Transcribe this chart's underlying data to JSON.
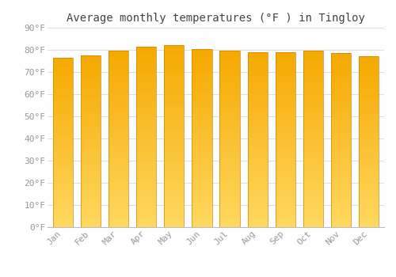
{
  "title": "Average monthly temperatures (°F ) in Tingloy",
  "months": [
    "Jan",
    "Feb",
    "Mar",
    "Apr",
    "May",
    "Jun",
    "Jul",
    "Aug",
    "Sep",
    "Oct",
    "Nov",
    "Dec"
  ],
  "values": [
    76.5,
    77.5,
    79.5,
    81.5,
    82.0,
    80.5,
    79.5,
    79.0,
    79.0,
    79.5,
    78.5,
    77.0
  ],
  "ylim": [
    0,
    90
  ],
  "yticks": [
    0,
    10,
    20,
    30,
    40,
    50,
    60,
    70,
    80,
    90
  ],
  "ytick_labels": [
    "0°F",
    "10°F",
    "20°F",
    "30°F",
    "40°F",
    "50°F",
    "60°F",
    "70°F",
    "80°F",
    "90°F"
  ],
  "bar_color_top": "#F5A800",
  "bar_color_bottom": "#FFD860",
  "background_color": "#FEFEFE",
  "grid_color": "#DDDDDD",
  "title_fontsize": 10,
  "tick_fontsize": 8,
  "title_color": "#444444",
  "tick_color": "#999999",
  "bar_width": 0.72,
  "bar_edge_color": "#CC8800",
  "bar_edge_width": 0.5
}
